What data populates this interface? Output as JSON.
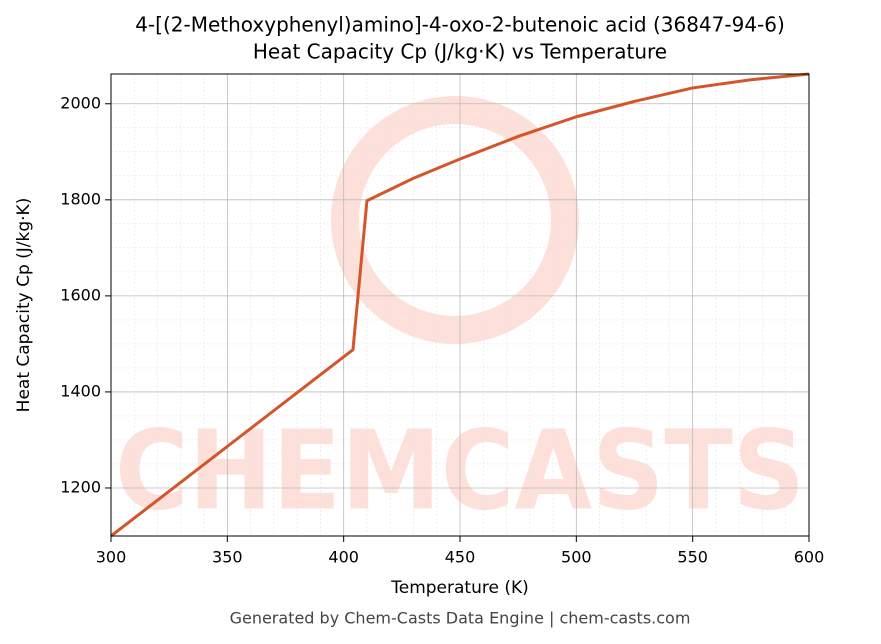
{
  "chart_data": {
    "type": "line",
    "title": "4-[(2-Methoxyphenyl)amino]-4-oxo-2-butenoic acid (36847-94-6)",
    "subtitle": "Heat Capacity Cp (J/kg·K) vs Temperature",
    "x_label": "Temperature (K)",
    "y_label": "Heat Capacity Cp (J/kg·K)",
    "footer": "Generated by Chem-Casts Data Engine | chem-casts.com",
    "watermark": "CHEMCASTS",
    "x": [
      300,
      404,
      410,
      430,
      450,
      475,
      500,
      525,
      550,
      575,
      600
    ],
    "series": [
      {
        "name": "Cp",
        "color": "#d4552a",
        "values": [
          1100,
          1488,
          1798,
          1845,
          1885,
          1932,
          1973,
          2005,
          2033,
          2050,
          2062
        ]
      }
    ],
    "xlim": [
      300,
      600
    ],
    "ylim": [
      1100,
      2062
    ],
    "xticks": [
      300,
      350,
      400,
      450,
      500,
      550,
      600
    ],
    "yticks": [
      1200,
      1400,
      1600,
      1800,
      2000
    ],
    "grid": true
  }
}
